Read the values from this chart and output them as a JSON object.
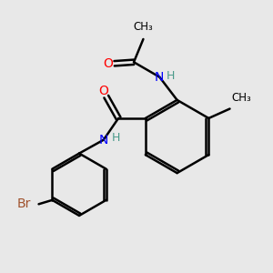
{
  "background_color": "#e8e8e8",
  "bond_color": "#000000",
  "bond_width": 1.8,
  "atom_colors": {
    "O": "#ff0000",
    "N": "#0000ff",
    "Br": "#a0522d",
    "H": "#4a9a8a",
    "C": "#000000"
  },
  "figsize": [
    3.0,
    3.0
  ],
  "dpi": 100
}
